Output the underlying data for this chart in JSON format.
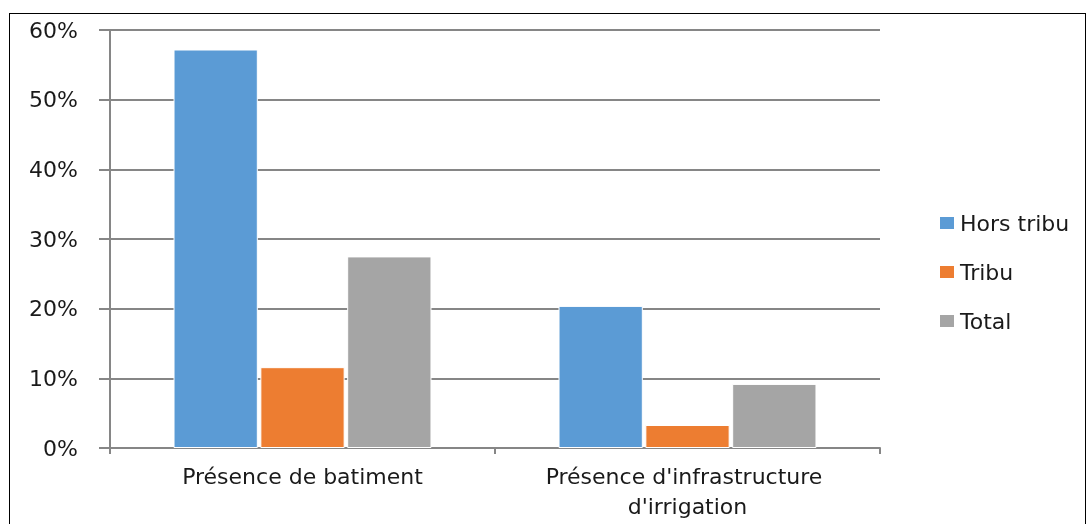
{
  "chart_data": {
    "type": "bar",
    "categories": [
      "Présence de batiment",
      "Présence d'infrastructure d'irrigation"
    ],
    "series": [
      {
        "name": "Hors tribu",
        "color": "#5b9bd5",
        "values": [
          57.2,
          20.4
        ]
      },
      {
        "name": "Tribu",
        "color": "#ed7d31",
        "values": [
          11.6,
          3.3
        ]
      },
      {
        "name": "Total",
        "color": "#a5a5a5",
        "values": [
          27.5,
          9.2
        ]
      }
    ],
    "ylim": [
      0,
      60
    ],
    "yticks": [
      {
        "value": 0,
        "label": "0%"
      },
      {
        "value": 10,
        "label": "10%"
      },
      {
        "value": 20,
        "label": "20%"
      },
      {
        "value": 30,
        "label": "30%"
      },
      {
        "value": 40,
        "label": "40%"
      },
      {
        "value": 50,
        "label": "50%"
      },
      {
        "value": 60,
        "label": "60%"
      }
    ],
    "grid": "y",
    "legend": "right"
  }
}
